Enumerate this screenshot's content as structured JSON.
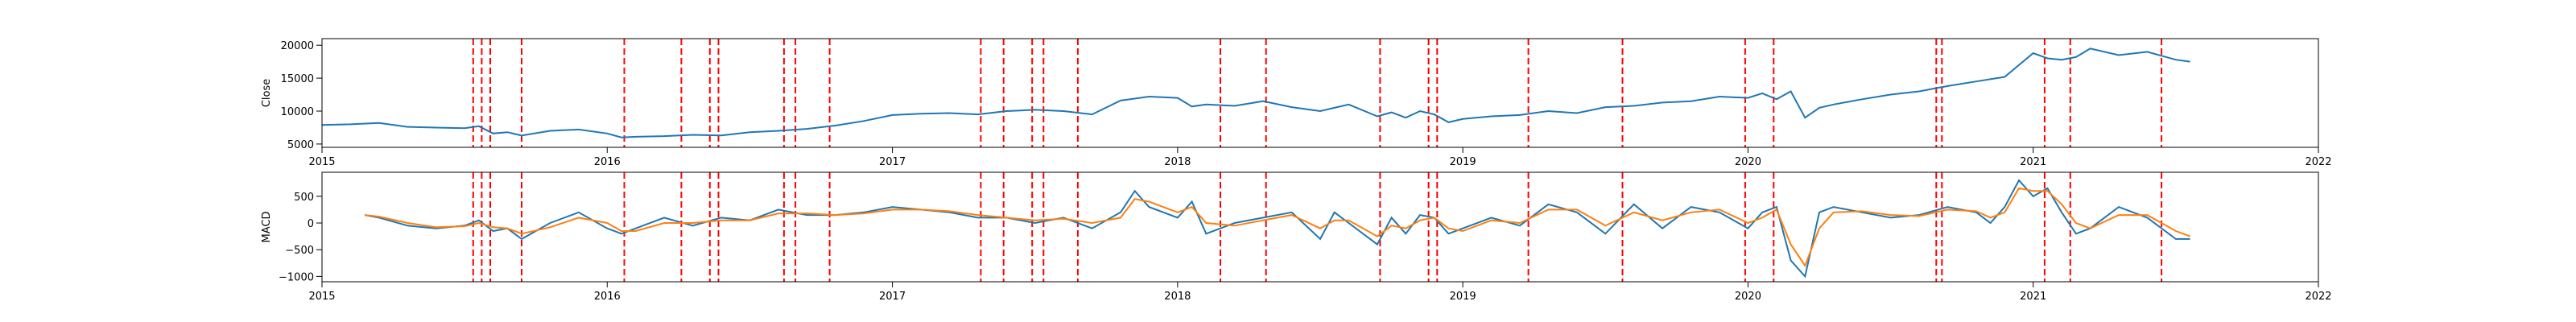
{
  "chart_data": [
    {
      "type": "line",
      "title": "",
      "xlabel": "",
      "ylabel": "Close",
      "xlim": [
        2015.0,
        2022.0
      ],
      "ylim": [
        4500,
        21000
      ],
      "x_ticks": [
        2015,
        2016,
        2017,
        2018,
        2019,
        2020,
        2021,
        2022
      ],
      "x_tick_labels": [
        "2015",
        "2016",
        "2017",
        "2018",
        "2019",
        "2020",
        "2021",
        "2022"
      ],
      "y_ticks": [
        5000,
        10000,
        15000,
        20000
      ],
      "y_tick_labels": [
        "5000",
        "10000",
        "15000",
        "20000"
      ],
      "grid": false,
      "colors": {
        "series": "#1f77b4",
        "events": "#ff0000"
      },
      "series": [
        {
          "x": [
            2015.0,
            2015.1,
            2015.2,
            2015.3,
            2015.4,
            2015.5,
            2015.55,
            2015.6,
            2015.65,
            2015.7,
            2015.8,
            2015.9,
            2016.0,
            2016.05,
            2016.1,
            2016.2,
            2016.3,
            2016.4,
            2016.5,
            2016.6,
            2016.7,
            2016.8,
            2016.9,
            2017.0,
            2017.1,
            2017.2,
            2017.3,
            2017.4,
            2017.5,
            2017.6,
            2017.7,
            2017.8,
            2017.9,
            2018.0,
            2018.05,
            2018.1,
            2018.2,
            2018.3,
            2018.4,
            2018.5,
            2018.6,
            2018.7,
            2018.75,
            2018.8,
            2018.85,
            2018.9,
            2018.95,
            2019.0,
            2019.1,
            2019.2,
            2019.3,
            2019.4,
            2019.5,
            2019.6,
            2019.7,
            2019.8,
            2019.9,
            2020.0,
            2020.05,
            2020.1,
            2020.15,
            2020.2,
            2020.25,
            2020.3,
            2020.4,
            2020.5,
            2020.6,
            2020.7,
            2020.8,
            2020.9,
            2021.0,
            2021.05,
            2021.1,
            2021.15,
            2021.2,
            2021.3,
            2021.4,
            2021.5,
            2021.55
          ],
          "y": [
            7900,
            8000,
            8200,
            7600,
            7500,
            7400,
            7700,
            6600,
            6800,
            6300,
            7000,
            7200,
            6600,
            6000,
            6100,
            6200,
            6400,
            6300,
            6800,
            7000,
            7300,
            7800,
            8500,
            9400,
            9600,
            9700,
            9500,
            10000,
            10200,
            10000,
            9500,
            11600,
            12200,
            12000,
            10700,
            11000,
            10800,
            11500,
            10600,
            10000,
            11000,
            9200,
            9800,
            9000,
            10000,
            9500,
            8300,
            8800,
            9200,
            9400,
            10000,
            9700,
            10600,
            10800,
            11300,
            11500,
            12200,
            12000,
            12700,
            11800,
            13000,
            9000,
            10500,
            11000,
            11800,
            12500,
            13000,
            13800,
            14500,
            15200,
            18800,
            18000,
            17800,
            18200,
            19500,
            18500,
            19000,
            17800,
            17500
          ]
        }
      ],
      "events": [
        2015.53,
        2015.56,
        2015.59,
        2015.7,
        2016.06,
        2016.26,
        2016.36,
        2016.39,
        2016.62,
        2016.66,
        2016.78,
        2017.31,
        2017.39,
        2017.49,
        2017.53,
        2017.65,
        2018.15,
        2018.31,
        2018.71,
        2018.88,
        2018.91,
        2019.23,
        2019.56,
        2019.99,
        2020.09,
        2020.66,
        2020.68,
        2021.04,
        2021.13,
        2021.45
      ]
    },
    {
      "type": "line",
      "title": "",
      "xlabel": "",
      "ylabel": "MACD",
      "xlim": [
        2015.0,
        2022.0
      ],
      "ylim": [
        -1100,
        950
      ],
      "x_ticks": [
        2015,
        2016,
        2017,
        2018,
        2019,
        2020,
        2021,
        2022
      ],
      "x_tick_labels": [
        "2015",
        "2016",
        "2017",
        "2018",
        "2019",
        "2020",
        "2021",
        "2022"
      ],
      "y_ticks": [
        -1000,
        -500,
        0,
        500
      ],
      "y_tick_labels": [
        "−1000",
        "−500",
        "0",
        "500"
      ],
      "grid": false,
      "colors": {
        "macd": "#1f77b4",
        "signal": "#ff7f0e",
        "events": "#ff0000"
      },
      "series": [
        {
          "x": [
            2015.15,
            2015.2,
            2015.3,
            2015.4,
            2015.5,
            2015.55,
            2015.6,
            2015.65,
            2015.7,
            2015.8,
            2015.9,
            2016.0,
            2016.05,
            2016.1,
            2016.2,
            2016.3,
            2016.4,
            2016.5,
            2016.6,
            2016.7,
            2016.8,
            2016.9,
            2017.0,
            2017.1,
            2017.2,
            2017.3,
            2017.4,
            2017.5,
            2017.6,
            2017.7,
            2017.8,
            2017.85,
            2017.9,
            2018.0,
            2018.05,
            2018.1,
            2018.2,
            2018.3,
            2018.4,
            2018.5,
            2018.55,
            2018.6,
            2018.7,
            2018.75,
            2018.8,
            2018.85,
            2018.9,
            2018.95,
            2019.0,
            2019.1,
            2019.2,
            2019.3,
            2019.4,
            2019.5,
            2019.6,
            2019.7,
            2019.8,
            2019.9,
            2020.0,
            2020.05,
            2020.1,
            2020.15,
            2020.2,
            2020.25,
            2020.3,
            2020.4,
            2020.5,
            2020.6,
            2020.7,
            2020.8,
            2020.85,
            2020.9,
            2020.95,
            2021.0,
            2021.05,
            2021.1,
            2021.15,
            2021.2,
            2021.3,
            2021.4,
            2021.5,
            2021.55
          ],
          "y": [
            150,
            100,
            -50,
            -100,
            -50,
            50,
            -150,
            -100,
            -300,
            0,
            200,
            -100,
            -200,
            -100,
            100,
            -50,
            100,
            50,
            250,
            150,
            150,
            200,
            300,
            250,
            200,
            100,
            100,
            0,
            100,
            -100,
            200,
            600,
            300,
            100,
            400,
            -200,
            0,
            100,
            200,
            -300,
            200,
            0,
            -400,
            100,
            -200,
            150,
            100,
            -200,
            -100,
            100,
            -50,
            350,
            200,
            -200,
            350,
            -100,
            300,
            200,
            -100,
            200,
            300,
            -700,
            -1000,
            200,
            300,
            200,
            100,
            150,
            300,
            200,
            0,
            300,
            800,
            500,
            650,
            200,
            -200,
            -100,
            300,
            100,
            -300,
            -300
          ]
        },
        {
          "x": [
            2015.15,
            2015.2,
            2015.3,
            2015.4,
            2015.5,
            2015.55,
            2015.6,
            2015.65,
            2015.7,
            2015.8,
            2015.9,
            2016.0,
            2016.05,
            2016.1,
            2016.2,
            2016.3,
            2016.4,
            2016.5,
            2016.6,
            2016.7,
            2016.8,
            2016.9,
            2017.0,
            2017.1,
            2017.2,
            2017.3,
            2017.4,
            2017.5,
            2017.6,
            2017.7,
            2017.8,
            2017.85,
            2017.9,
            2018.0,
            2018.05,
            2018.1,
            2018.2,
            2018.3,
            2018.4,
            2018.5,
            2018.55,
            2018.6,
            2018.7,
            2018.75,
            2018.8,
            2018.85,
            2018.9,
            2018.95,
            2019.0,
            2019.1,
            2019.2,
            2019.3,
            2019.4,
            2019.5,
            2019.6,
            2019.7,
            2019.8,
            2019.9,
            2020.0,
            2020.05,
            2020.1,
            2020.15,
            2020.2,
            2020.25,
            2020.3,
            2020.4,
            2020.5,
            2020.6,
            2020.7,
            2020.8,
            2020.85,
            2020.9,
            2020.95,
            2021.0,
            2021.05,
            2021.1,
            2021.15,
            2021.2,
            2021.3,
            2021.4,
            2021.5,
            2021.55
          ],
          "y": [
            150,
            120,
            0,
            -80,
            -60,
            0,
            -80,
            -100,
            -200,
            -80,
            100,
            0,
            -150,
            -150,
            0,
            0,
            50,
            50,
            180,
            180,
            150,
            180,
            250,
            250,
            220,
            150,
            100,
            50,
            80,
            0,
            100,
            450,
            400,
            200,
            300,
            0,
            -50,
            50,
            150,
            -100,
            50,
            50,
            -250,
            -50,
            -100,
            50,
            100,
            -100,
            -150,
            50,
            0,
            250,
            250,
            -50,
            200,
            50,
            200,
            250,
            0,
            100,
            250,
            -400,
            -800,
            -100,
            200,
            220,
            150,
            130,
            250,
            220,
            100,
            200,
            650,
            600,
            600,
            350,
            0,
            -100,
            150,
            150,
            -150,
            -250
          ]
        }
      ],
      "events": [
        2015.53,
        2015.56,
        2015.59,
        2015.7,
        2016.06,
        2016.26,
        2016.36,
        2016.39,
        2016.62,
        2016.66,
        2016.78,
        2017.31,
        2017.39,
        2017.49,
        2017.53,
        2017.65,
        2018.15,
        2018.31,
        2018.71,
        2018.88,
        2018.91,
        2019.23,
        2019.56,
        2019.99,
        2020.09,
        2020.66,
        2020.68,
        2021.04,
        2021.13,
        2021.45
      ]
    }
  ]
}
